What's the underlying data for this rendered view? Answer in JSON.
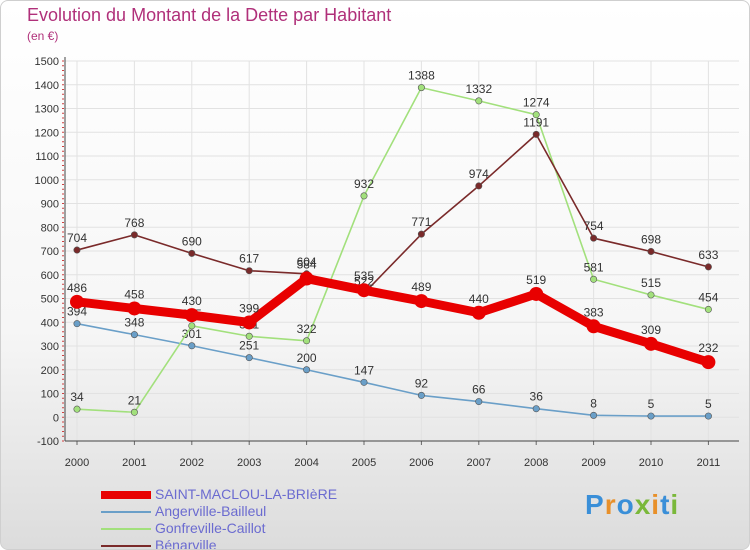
{
  "header": {
    "title": "Evolution du Montant de la Dette par Habitant",
    "subtitle": "(en €)"
  },
  "logo": {
    "text": "Proxiti",
    "letter_colors": [
      "#3a8fd8",
      "#e8902a",
      "#3a8fd8",
      "#7ab83a",
      "#e8902a",
      "#3a8fd8",
      "#7ab83a"
    ]
  },
  "chart_data": {
    "type": "line",
    "title": "Evolution du Montant de la Dette par Habitant",
    "subtitle": "(en €)",
    "xlabel": "",
    "ylabel": "",
    "x": [
      "2000",
      "2001",
      "2002",
      "2003",
      "2004",
      "2005",
      "2006",
      "2007",
      "2008",
      "2009",
      "2010",
      "2011"
    ],
    "ylim": [
      -100,
      1500
    ],
    "yticks": [
      "-100",
      "0",
      "100",
      "200",
      "300",
      "400",
      "500",
      "600",
      "700",
      "800",
      "900",
      "1000",
      "1100",
      "1200",
      "1300",
      "1400",
      "1500"
    ],
    "grid": true,
    "legend_position": "bottom-left",
    "series": [
      {
        "name": "SAINT-MACLOU-LA-BRIèRE",
        "color": "#e80000",
        "emphasis": true,
        "values": [
          486,
          458,
          430,
          399,
          584,
          535,
          489,
          440,
          519,
          383,
          309,
          232
        ]
      },
      {
        "name": "Angerville-Bailleul",
        "color": "#6a9fc8",
        "emphasis": false,
        "values": [
          394,
          348,
          301,
          251,
          200,
          147,
          92,
          66,
          36,
          8,
          5,
          5
        ]
      },
      {
        "name": "Gonfreville-Caillot",
        "color": "#a2e07c",
        "emphasis": false,
        "values": [
          34,
          21,
          385,
          341,
          322,
          932,
          1388,
          1332,
          1274,
          581,
          515,
          454
        ]
      },
      {
        "name": "Bénarville",
        "color": "#7a2a2a",
        "emphasis": false,
        "values": [
          704,
          768,
          690,
          617,
          604,
          522,
          771,
          974,
          1191,
          754,
          698,
          633
        ]
      }
    ]
  }
}
